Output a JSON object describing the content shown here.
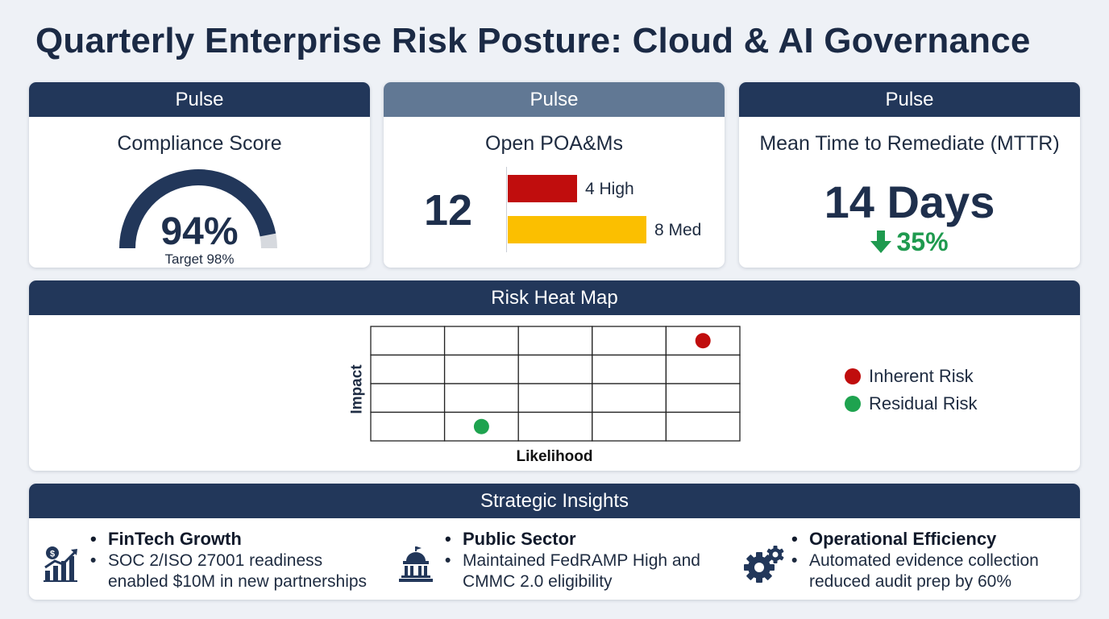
{
  "page": {
    "title": "Quarterly Enterprise Risk Posture: Cloud & AI Governance"
  },
  "kpis": {
    "compliance": {
      "header": "Pulse",
      "label": "Compliance Score",
      "value": "94%",
      "target_label": "Target 98%",
      "fill_fraction": 0.94,
      "color": "#22375a"
    },
    "poams": {
      "header": "Pulse",
      "label": "Open POA&Ms",
      "total": "12",
      "bars": [
        {
          "label": "4 High",
          "count": 4,
          "color": "#c00d0d"
        },
        {
          "label": "8 Med",
          "count": 8,
          "color": "#fbbf00"
        }
      ]
    },
    "mttr": {
      "header": "Pulse",
      "label": "Mean Time to Remediate (MTTR)",
      "value": "14 Days",
      "change": "35%",
      "change_direction": "down",
      "change_color": "#1f9a4f"
    }
  },
  "heatmap": {
    "header": "Risk Heat Map",
    "xlabel": "Likelihood",
    "ylabel": "Impact",
    "columns": 5,
    "rows": 4,
    "points": [
      {
        "name": "Inherent Risk",
        "likelihood": 5,
        "impact": 4,
        "color": "#c00d0d"
      },
      {
        "name": "Residual Risk",
        "likelihood": 2,
        "impact": 1,
        "color": "#1ea34f"
      }
    ],
    "legend": [
      {
        "label": "Inherent Risk",
        "color": "#c00d0d"
      },
      {
        "label": "Residual Risk",
        "color": "#1ea34f"
      }
    ]
  },
  "insights": {
    "header": "Strategic Insights",
    "items": [
      {
        "icon": "money-growth-chart-icon",
        "title": "FinTech Growth",
        "body": "SOC 2/ISO 27001 readiness enabled $10M in new partnerships"
      },
      {
        "icon": "government-building-icon",
        "title": "Public Sector",
        "body": "Maintained FedRAMP High and CMMC 2.0 eligibility"
      },
      {
        "icon": "gears-icon",
        "title": "Operational Efficiency",
        "body": "Automated evidence collection reduced audit prep by 60%"
      }
    ]
  }
}
